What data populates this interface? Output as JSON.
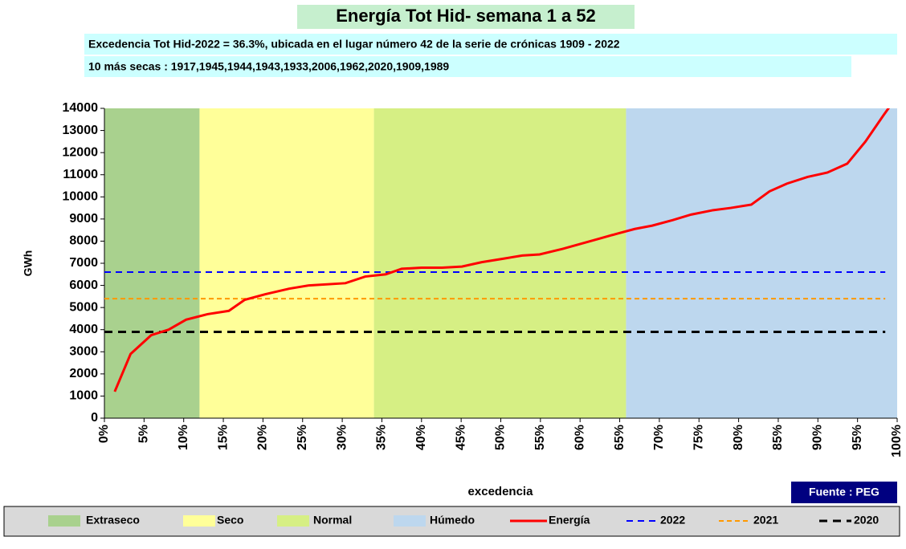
{
  "chart_data": {
    "type": "line",
    "title": "Energía  Tot Hid- semana  1 a 52",
    "subtitle": [
      "Excedencia  Tot Hid-2022 = 36.3%, ubicada en el lugar número 42 de la serie de crónicas 1909 - 2022",
      "10 más secas : 1917,1945,1944,1943,1933,2006,1962,2020,1909,1989"
    ],
    "y_label": "GWh",
    "x_label": "excedencia",
    "source": "Fuente : PEG",
    "xlim": [
      0,
      100
    ],
    "ylim": [
      0,
      14000
    ],
    "xticks": [
      {
        "value": 0,
        "label": "0%"
      },
      {
        "value": 5,
        "label": "5%"
      },
      {
        "value": 10,
        "label": "10%"
      },
      {
        "value": 15,
        "label": "15%"
      },
      {
        "value": 20,
        "label": "20%"
      },
      {
        "value": 25,
        "label": "25%"
      },
      {
        "value": 30,
        "label": "30%"
      },
      {
        "value": 35,
        "label": "35%"
      },
      {
        "value": 40,
        "label": "40%"
      },
      {
        "value": 45,
        "label": "45%"
      },
      {
        "value": 50,
        "label": "50%"
      },
      {
        "value": 55,
        "label": "55%"
      },
      {
        "value": 60,
        "label": "60%"
      },
      {
        "value": 65,
        "label": "65%"
      },
      {
        "value": 70,
        "label": "70%"
      },
      {
        "value": 75,
        "label": "75%"
      },
      {
        "value": 80,
        "label": "80%"
      },
      {
        "value": 85,
        "label": "85%"
      },
      {
        "value": 90,
        "label": "90%"
      },
      {
        "value": 95,
        "label": "95%"
      },
      {
        "value": 100,
        "label": "100%"
      }
    ],
    "yticks": [
      0,
      1000,
      2000,
      3000,
      4000,
      5000,
      6000,
      7000,
      8000,
      9000,
      10000,
      11000,
      12000,
      13000,
      14000
    ],
    "bands": [
      {
        "name": "Extraseco",
        "color": "#a9d18e",
        "range": [
          0,
          12
        ]
      },
      {
        "name": "Seco",
        "color": "#ffff99",
        "range": [
          12,
          34
        ]
      },
      {
        "name": "Normal",
        "color": "#d6ef84",
        "range": [
          34,
          65.8
        ]
      },
      {
        "name": "Húmedo",
        "color": "#bdd7ee",
        "range": [
          65.8,
          100
        ]
      }
    ],
    "series": [
      {
        "name": "Energía",
        "color": "#ff0000",
        "x": [
          1.3,
          3.3,
          5.9,
          8.1,
          10.3,
          13,
          15.7,
          17.7,
          20.3,
          23.3,
          25.8,
          30.4,
          32.9,
          35.5,
          37.5,
          40,
          42.6,
          45.1,
          47.6,
          50.2,
          52.7,
          54.9,
          57.8,
          59.8,
          62.3,
          64.8,
          66.9,
          69.1,
          71.7,
          74,
          76.8,
          79,
          81.6,
          83.9,
          86.1,
          88.7,
          91.2,
          93.7,
          96,
          98.3,
          99.3
        ],
        "values": [
          1200,
          2900,
          3750,
          4000,
          4450,
          4700,
          4850,
          5350,
          5600,
          5850,
          6000,
          6100,
          6400,
          6500,
          6750,
          6800,
          6800,
          6850,
          7050,
          7200,
          7350,
          7400,
          7650,
          7850,
          8100,
          8350,
          8550,
          8700,
          8950,
          9200,
          9400,
          9500,
          9650,
          10250,
          10600,
          10900,
          11100,
          11500,
          12500,
          13700,
          14200
        ]
      }
    ],
    "reference_lines": [
      {
        "name": "2022",
        "value": 6600,
        "color": "#0000ff"
      },
      {
        "name": "2021",
        "value": 5400,
        "color": "#ff9900"
      },
      {
        "name": "2020",
        "value": 3900,
        "color": "#000000"
      }
    ]
  }
}
